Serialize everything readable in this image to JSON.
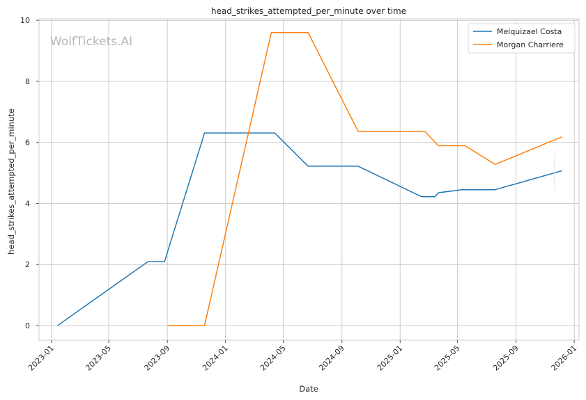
{
  "chart_data": {
    "type": "line",
    "title": "head_strikes_attempted_per_minute over time",
    "xlabel": "Date",
    "ylabel": "head_strikes_attempted_per_minute",
    "watermark": "WolfTickets.AI",
    "xlim": [
      "2022-12-06",
      "2026-01-11"
    ],
    "ylim": [
      -0.48,
      10.05
    ],
    "x_ticks": [
      "2023-01",
      "2023-05",
      "2023-09",
      "2024-01",
      "2024-05",
      "2024-09",
      "2025-01",
      "2025-05",
      "2025-09",
      "2026-01"
    ],
    "y_ticks": [
      0,
      2,
      4,
      6,
      8,
      10
    ],
    "grid": true,
    "legend_position": "top-right",
    "series": [
      {
        "name": "Melquizael Costa",
        "color": "#1f77b4",
        "points": [
          {
            "x": "2023-01-14",
            "y": 0
          },
          {
            "x": "2023-07-22",
            "y": 2.09
          },
          {
            "x": "2023-08-26",
            "y": 2.09
          },
          {
            "x": "2023-11-18",
            "y": 6.31
          },
          {
            "x": "2024-04-13",
            "y": 6.31
          },
          {
            "x": "2024-06-22",
            "y": 5.22
          },
          {
            "x": "2024-10-05",
            "y": 5.22
          },
          {
            "x": "2025-02-15",
            "y": 4.22
          },
          {
            "x": "2025-03-15",
            "y": 4.22
          },
          {
            "x": "2025-03-22",
            "y": 4.35
          },
          {
            "x": "2025-05-10",
            "y": 4.45
          },
          {
            "x": "2025-07-19",
            "y": 4.45
          },
          {
            "x": "2025-12-06",
            "y": 5.07
          }
        ]
      },
      {
        "name": "Morgan Charriere",
        "color": "#ff7f0e",
        "points": [
          {
            "x": "2023-09-02",
            "y": 0
          },
          {
            "x": "2023-11-18",
            "y": 0
          },
          {
            "x": "2024-04-06",
            "y": 9.6
          },
          {
            "x": "2024-06-22",
            "y": 9.6
          },
          {
            "x": "2024-10-05",
            "y": 6.36
          },
          {
            "x": "2025-02-22",
            "y": 6.36
          },
          {
            "x": "2025-03-22",
            "y": 5.89
          },
          {
            "x": "2025-05-17",
            "y": 5.89
          },
          {
            "x": "2025-07-19",
            "y": 5.28
          },
          {
            "x": "2025-12-06",
            "y": 6.18
          }
        ]
      }
    ]
  }
}
